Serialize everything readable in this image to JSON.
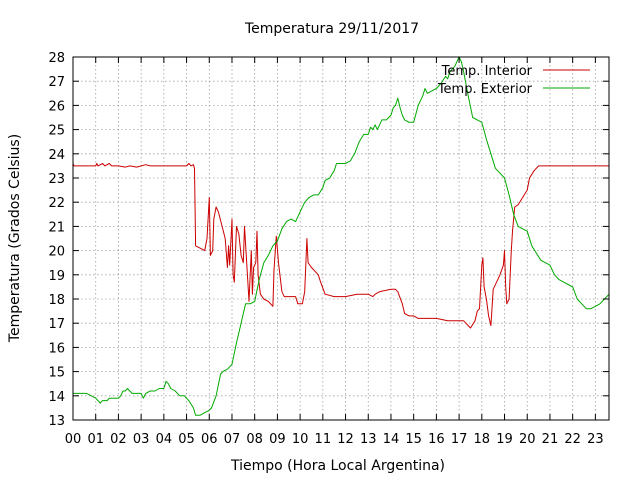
{
  "chart_data": {
    "type": "line",
    "title": "Temperatura 29/11/2017",
    "xlabel": "Tiempo (Hora Local Argentina)",
    "ylabel": "Temperatura (Grados Celsius)",
    "xlim": [
      0,
      23.6
    ],
    "ylim": [
      13,
      28
    ],
    "x_ticks": [
      {
        "value": 0,
        "label": "00"
      },
      {
        "value": 1,
        "label": "01"
      },
      {
        "value": 2,
        "label": "02"
      },
      {
        "value": 3,
        "label": "03"
      },
      {
        "value": 4,
        "label": "04"
      },
      {
        "value": 5,
        "label": "05"
      },
      {
        "value": 6,
        "label": "06"
      },
      {
        "value": 7,
        "label": "07"
      },
      {
        "value": 8,
        "label": "08"
      },
      {
        "value": 9,
        "label": "09"
      },
      {
        "value": 10,
        "label": "10"
      },
      {
        "value": 11,
        "label": "11"
      },
      {
        "value": 12,
        "label": "12"
      },
      {
        "value": 13,
        "label": "13"
      },
      {
        "value": 14,
        "label": "14"
      },
      {
        "value": 15,
        "label": "15"
      },
      {
        "value": 16,
        "label": "16"
      },
      {
        "value": 17,
        "label": "17"
      },
      {
        "value": 18,
        "label": "18"
      },
      {
        "value": 19,
        "label": "19"
      },
      {
        "value": 20,
        "label": "20"
      },
      {
        "value": 21,
        "label": "21"
      },
      {
        "value": 22,
        "label": "22"
      },
      {
        "value": 23,
        "label": "23"
      }
    ],
    "y_ticks": [
      {
        "value": 13,
        "label": "13"
      },
      {
        "value": 14,
        "label": "14"
      },
      {
        "value": 15,
        "label": "15"
      },
      {
        "value": 16,
        "label": "16"
      },
      {
        "value": 17,
        "label": "17"
      },
      {
        "value": 18,
        "label": "18"
      },
      {
        "value": 19,
        "label": "19"
      },
      {
        "value": 20,
        "label": "20"
      },
      {
        "value": 21,
        "label": "21"
      },
      {
        "value": 22,
        "label": "22"
      },
      {
        "value": 23,
        "label": "23"
      },
      {
        "value": 24,
        "label": "24"
      },
      {
        "value": 25,
        "label": "25"
      },
      {
        "value": 26,
        "label": "26"
      },
      {
        "value": 27,
        "label": "27"
      },
      {
        "value": 28,
        "label": "28"
      }
    ],
    "grid": true,
    "legend": "top-right",
    "series": [
      {
        "name": "Temp. Interior",
        "color": "#cc0000",
        "points": [
          [
            0.0,
            23.6
          ],
          [
            0.05,
            23.5
          ],
          [
            0.5,
            23.5
          ],
          [
            1.0,
            23.5
          ],
          [
            1.05,
            23.6
          ],
          [
            1.1,
            23.5
          ],
          [
            1.3,
            23.6
          ],
          [
            1.4,
            23.5
          ],
          [
            1.6,
            23.6
          ],
          [
            1.7,
            23.5
          ],
          [
            2.0,
            23.5
          ],
          [
            2.3,
            23.45
          ],
          [
            2.5,
            23.5
          ],
          [
            2.8,
            23.45
          ],
          [
            3.0,
            23.5
          ],
          [
            3.2,
            23.55
          ],
          [
            3.4,
            23.5
          ],
          [
            3.6,
            23.5
          ],
          [
            4.0,
            23.5
          ],
          [
            4.5,
            23.5
          ],
          [
            5.0,
            23.5
          ],
          [
            5.1,
            23.6
          ],
          [
            5.2,
            23.5
          ],
          [
            5.3,
            23.55
          ],
          [
            5.35,
            23.4
          ],
          [
            5.4,
            20.2
          ],
          [
            5.8,
            20.0
          ],
          [
            5.9,
            20.5
          ],
          [
            6.0,
            22.2
          ],
          [
            6.05,
            19.8
          ],
          [
            6.15,
            20.0
          ],
          [
            6.2,
            21.3
          ],
          [
            6.3,
            21.8
          ],
          [
            6.4,
            21.6
          ],
          [
            6.7,
            20.5
          ],
          [
            6.8,
            19.3
          ],
          [
            6.85,
            20.2
          ],
          [
            6.9,
            19.4
          ],
          [
            7.0,
            21.3
          ],
          [
            7.05,
            19.0
          ],
          [
            7.1,
            18.7
          ],
          [
            7.2,
            21.0
          ],
          [
            7.3,
            20.7
          ],
          [
            7.4,
            19.8
          ],
          [
            7.5,
            19.5
          ],
          [
            7.55,
            21.0
          ],
          [
            7.65,
            19.5
          ],
          [
            7.75,
            17.9
          ],
          [
            7.85,
            20.0
          ],
          [
            7.9,
            18.2
          ],
          [
            7.95,
            19.3
          ],
          [
            8.05,
            19.5
          ],
          [
            8.1,
            20.8
          ],
          [
            8.15,
            19.0
          ],
          [
            8.25,
            18.2
          ],
          [
            8.4,
            18.0
          ],
          [
            8.6,
            17.9
          ],
          [
            8.8,
            17.7
          ],
          [
            8.85,
            19.2
          ],
          [
            8.95,
            20.6
          ],
          [
            9.05,
            19.5
          ],
          [
            9.2,
            18.3
          ],
          [
            9.3,
            18.1
          ],
          [
            9.6,
            18.1
          ],
          [
            9.8,
            18.1
          ],
          [
            9.9,
            17.8
          ],
          [
            10.1,
            17.8
          ],
          [
            10.2,
            18.3
          ],
          [
            10.3,
            20.5
          ],
          [
            10.35,
            19.5
          ],
          [
            10.5,
            19.3
          ],
          [
            10.8,
            19.0
          ],
          [
            10.9,
            18.7
          ],
          [
            11.1,
            18.2
          ],
          [
            11.5,
            18.1
          ],
          [
            12.0,
            18.1
          ],
          [
            12.5,
            18.2
          ],
          [
            13.0,
            18.2
          ],
          [
            13.2,
            18.1
          ],
          [
            13.3,
            18.2
          ],
          [
            13.5,
            18.3
          ],
          [
            14.0,
            18.4
          ],
          [
            14.2,
            18.4
          ],
          [
            14.3,
            18.3
          ],
          [
            14.5,
            17.8
          ],
          [
            14.6,
            17.4
          ],
          [
            14.8,
            17.3
          ],
          [
            15.0,
            17.3
          ],
          [
            15.2,
            17.2
          ],
          [
            15.5,
            17.2
          ],
          [
            16.0,
            17.2
          ],
          [
            16.5,
            17.1
          ],
          [
            17.0,
            17.1
          ],
          [
            17.2,
            17.1
          ],
          [
            17.3,
            17.0
          ],
          [
            17.4,
            16.9
          ],
          [
            17.5,
            16.8
          ],
          [
            17.7,
            17.1
          ],
          [
            17.8,
            17.5
          ],
          [
            17.9,
            17.6
          ],
          [
            18.0,
            19.4
          ],
          [
            18.05,
            19.7
          ],
          [
            18.1,
            18.5
          ],
          [
            18.2,
            18.0
          ],
          [
            18.3,
            17.3
          ],
          [
            18.4,
            16.9
          ],
          [
            18.5,
            18.4
          ],
          [
            18.8,
            19.0
          ],
          [
            18.95,
            19.4
          ],
          [
            19.0,
            20.0
          ],
          [
            19.05,
            18.5
          ],
          [
            19.1,
            17.8
          ],
          [
            19.2,
            18.0
          ],
          [
            19.3,
            20.0
          ],
          [
            19.35,
            20.8
          ],
          [
            19.45,
            21.8
          ],
          [
            19.6,
            21.9
          ],
          [
            19.8,
            22.2
          ],
          [
            20.0,
            22.5
          ],
          [
            20.1,
            23.0
          ],
          [
            20.3,
            23.3
          ],
          [
            20.5,
            23.5
          ],
          [
            21.0,
            23.5
          ],
          [
            22.0,
            23.5
          ],
          [
            23.0,
            23.5
          ],
          [
            23.6,
            23.5
          ]
        ]
      },
      {
        "name": "Temp. Exterior",
        "color": "#00aa00",
        "points": [
          [
            0.0,
            14.1
          ],
          [
            0.3,
            14.1
          ],
          [
            0.6,
            14.1
          ],
          [
            0.8,
            14.0
          ],
          [
            1.0,
            13.9
          ],
          [
            1.1,
            13.8
          ],
          [
            1.2,
            13.7
          ],
          [
            1.3,
            13.8
          ],
          [
            1.5,
            13.8
          ],
          [
            1.6,
            13.9
          ],
          [
            1.8,
            13.9
          ],
          [
            2.0,
            13.9
          ],
          [
            2.1,
            14.0
          ],
          [
            2.2,
            14.2
          ],
          [
            2.3,
            14.2
          ],
          [
            2.4,
            14.3
          ],
          [
            2.5,
            14.2
          ],
          [
            2.6,
            14.1
          ],
          [
            2.8,
            14.1
          ],
          [
            3.0,
            14.1
          ],
          [
            3.1,
            13.9
          ],
          [
            3.2,
            14.1
          ],
          [
            3.4,
            14.2
          ],
          [
            3.6,
            14.2
          ],
          [
            3.8,
            14.3
          ],
          [
            4.0,
            14.3
          ],
          [
            4.1,
            14.6
          ],
          [
            4.2,
            14.5
          ],
          [
            4.3,
            14.3
          ],
          [
            4.5,
            14.2
          ],
          [
            4.7,
            14.0
          ],
          [
            4.9,
            14.0
          ],
          [
            5.1,
            13.8
          ],
          [
            5.3,
            13.5
          ],
          [
            5.4,
            13.2
          ],
          [
            5.6,
            13.2
          ],
          [
            5.8,
            13.3
          ],
          [
            6.0,
            13.4
          ],
          [
            6.1,
            13.5
          ],
          [
            6.3,
            14.0
          ],
          [
            6.5,
            14.9
          ],
          [
            6.6,
            15.0
          ],
          [
            6.8,
            15.1
          ],
          [
            7.0,
            15.3
          ],
          [
            7.2,
            16.2
          ],
          [
            7.4,
            17.0
          ],
          [
            7.5,
            17.4
          ],
          [
            7.6,
            17.8
          ],
          [
            7.8,
            17.8
          ],
          [
            8.0,
            17.9
          ],
          [
            8.2,
            18.8
          ],
          [
            8.4,
            19.5
          ],
          [
            8.6,
            19.8
          ],
          [
            8.8,
            20.2
          ],
          [
            9.0,
            20.4
          ],
          [
            9.2,
            20.9
          ],
          [
            9.4,
            21.2
          ],
          [
            9.6,
            21.3
          ],
          [
            9.8,
            21.2
          ],
          [
            10.0,
            21.6
          ],
          [
            10.2,
            22.0
          ],
          [
            10.4,
            22.2
          ],
          [
            10.6,
            22.3
          ],
          [
            10.8,
            22.3
          ],
          [
            11.0,
            22.6
          ],
          [
            11.1,
            22.9
          ],
          [
            11.3,
            23.0
          ],
          [
            11.5,
            23.3
          ],
          [
            11.6,
            23.6
          ],
          [
            12.0,
            23.6
          ],
          [
            12.2,
            23.7
          ],
          [
            12.4,
            24.0
          ],
          [
            12.6,
            24.5
          ],
          [
            12.8,
            24.8
          ],
          [
            13.0,
            24.8
          ],
          [
            13.1,
            25.1
          ],
          [
            13.2,
            25.0
          ],
          [
            13.3,
            25.2
          ],
          [
            13.4,
            25.0
          ],
          [
            13.5,
            25.2
          ],
          [
            13.6,
            25.4
          ],
          [
            13.8,
            25.4
          ],
          [
            14.0,
            25.6
          ],
          [
            14.1,
            25.9
          ],
          [
            14.2,
            26.0
          ],
          [
            14.3,
            26.3
          ],
          [
            14.4,
            25.9
          ],
          [
            14.5,
            25.6
          ],
          [
            14.6,
            25.4
          ],
          [
            14.8,
            25.3
          ],
          [
            15.0,
            25.3
          ],
          [
            15.2,
            26.0
          ],
          [
            15.4,
            26.4
          ],
          [
            15.5,
            26.7
          ],
          [
            15.6,
            26.5
          ],
          [
            15.8,
            26.6
          ],
          [
            16.0,
            26.7
          ],
          [
            16.2,
            26.9
          ],
          [
            16.4,
            27.2
          ],
          [
            16.5,
            27.1
          ],
          [
            16.6,
            27.4
          ],
          [
            16.8,
            27.6
          ],
          [
            17.0,
            28.0
          ],
          [
            17.1,
            27.8
          ],
          [
            17.2,
            27.4
          ],
          [
            17.3,
            26.9
          ],
          [
            17.4,
            26.4
          ],
          [
            17.6,
            25.5
          ],
          [
            17.8,
            25.4
          ],
          [
            18.0,
            25.3
          ],
          [
            18.2,
            24.6
          ],
          [
            18.4,
            24.0
          ],
          [
            18.6,
            23.4
          ],
          [
            18.8,
            23.2
          ],
          [
            19.0,
            23.0
          ],
          [
            19.2,
            22.3
          ],
          [
            19.4,
            21.5
          ],
          [
            19.6,
            21.0
          ],
          [
            19.8,
            20.9
          ],
          [
            20.0,
            20.8
          ],
          [
            20.2,
            20.2
          ],
          [
            20.4,
            19.9
          ],
          [
            20.6,
            19.6
          ],
          [
            20.8,
            19.5
          ],
          [
            21.0,
            19.4
          ],
          [
            21.2,
            19.0
          ],
          [
            21.4,
            18.8
          ],
          [
            21.6,
            18.7
          ],
          [
            21.8,
            18.6
          ],
          [
            22.0,
            18.5
          ],
          [
            22.2,
            18.0
          ],
          [
            22.4,
            17.8
          ],
          [
            22.6,
            17.6
          ],
          [
            22.8,
            17.6
          ],
          [
            23.0,
            17.7
          ],
          [
            23.2,
            17.8
          ],
          [
            23.4,
            18.0
          ],
          [
            23.6,
            18.2
          ]
        ]
      }
    ]
  }
}
